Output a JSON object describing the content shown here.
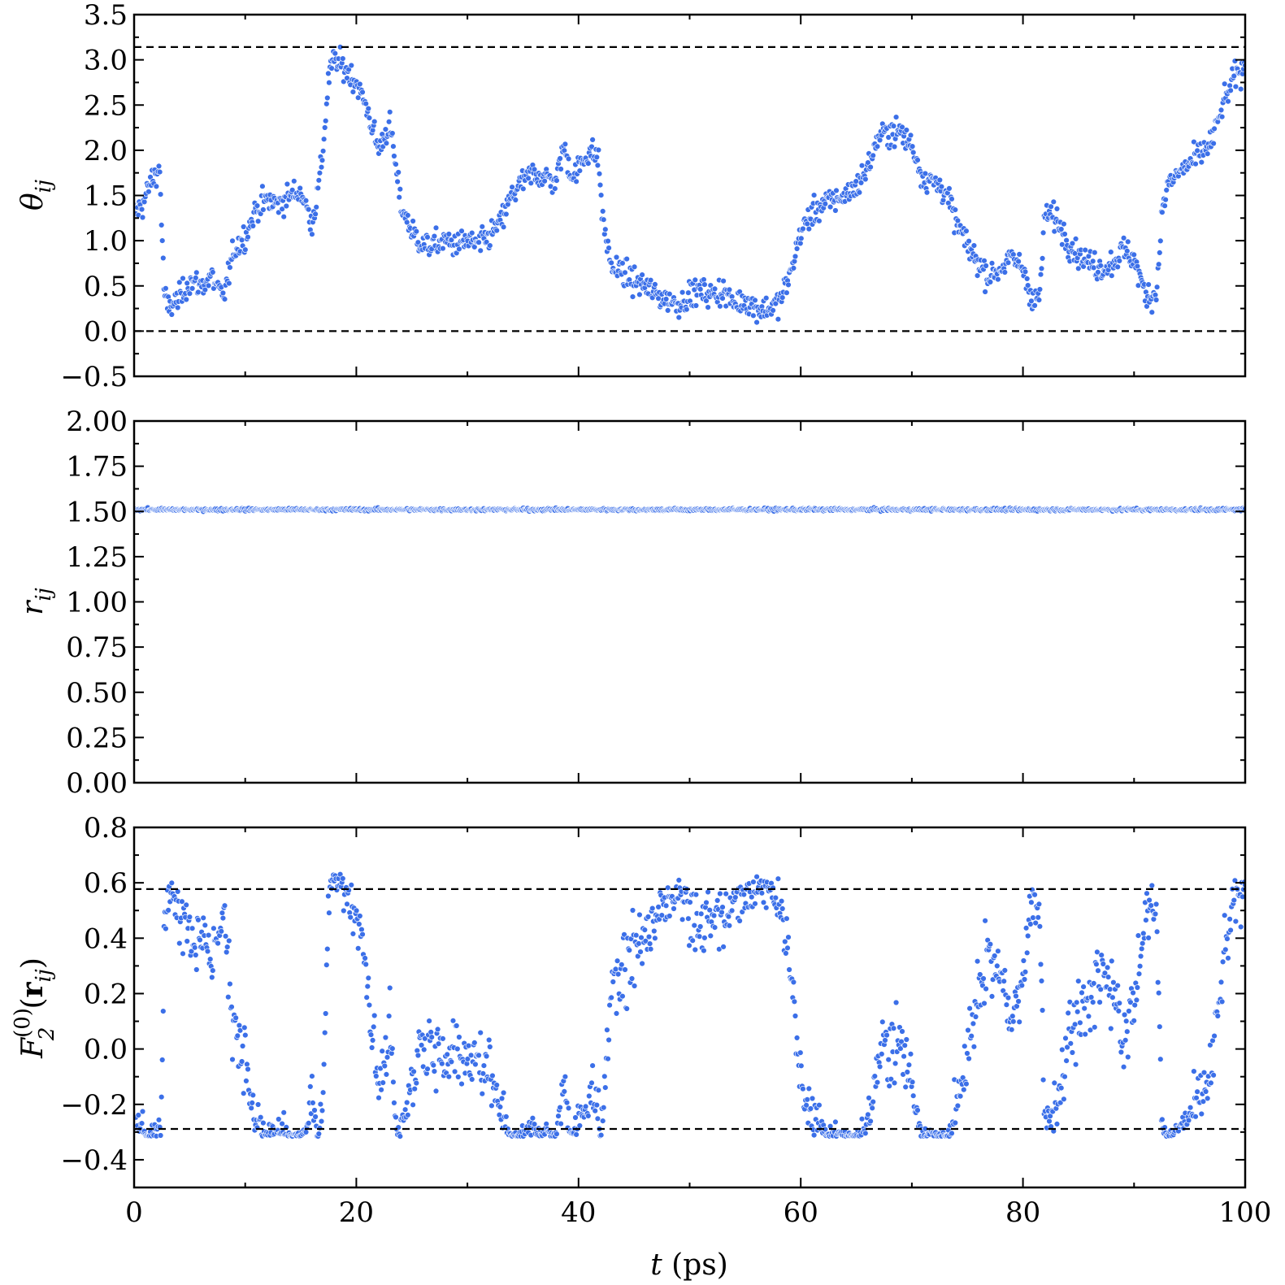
{
  "chart_data": [
    {
      "type": "scatter",
      "ylabel": "θ_ij",
      "ylim": [
        -0.5,
        3.5
      ],
      "xlim": [
        0,
        100
      ],
      "yticks": [
        "−0.5",
        "0.0",
        "0.5",
        "1.0",
        "1.5",
        "2.0",
        "2.5",
        "3.0",
        "3.5"
      ],
      "yticks_values": [
        -0.5,
        0.0,
        0.5,
        1.0,
        1.5,
        2.0,
        2.5,
        3.0,
        3.5
      ],
      "reference_lines": [
        0.0,
        3.1416
      ],
      "marker_color": "#3b6fe8",
      "series": [
        {
          "keypoints": [
            [
              0,
              1.3
            ],
            [
              0.8,
              1.4
            ],
            [
              1.5,
              1.65
            ],
            [
              2.3,
              1.8
            ],
            [
              2.7,
              0.45
            ],
            [
              3,
              0.25
            ],
            [
              4,
              0.35
            ],
            [
              5,
              0.55
            ],
            [
              6,
              0.5
            ],
            [
              7,
              0.6
            ],
            [
              8,
              0.35
            ],
            [
              9,
              0.9
            ],
            [
              10,
              1.05
            ],
            [
              11,
              1.35
            ],
            [
              12,
              1.45
            ],
            [
              13,
              1.4
            ],
            [
              14,
              1.5
            ],
            [
              15,
              1.55
            ],
            [
              16,
              1.2
            ],
            [
              16.5,
              1.5
            ],
            [
              17,
              2.0
            ],
            [
              17.5,
              2.8
            ],
            [
              18,
              3.0
            ],
            [
              19,
              2.9
            ],
            [
              20,
              2.75
            ],
            [
              21,
              2.45
            ],
            [
              22,
              2.0
            ],
            [
              23,
              2.3
            ],
            [
              24,
              1.4
            ],
            [
              25,
              1.1
            ],
            [
              26,
              0.95
            ],
            [
              27,
              0.95
            ],
            [
              28,
              1.0
            ],
            [
              29,
              0.95
            ],
            [
              30,
              1.0
            ],
            [
              31,
              0.95
            ],
            [
              32,
              1.05
            ],
            [
              33,
              1.2
            ],
            [
              34,
              1.5
            ],
            [
              35,
              1.65
            ],
            [
              36,
              1.75
            ],
            [
              37,
              1.7
            ],
            [
              38,
              1.65
            ],
            [
              38.6,
              2.05
            ],
            [
              39.5,
              1.7
            ],
            [
              40,
              1.8
            ],
            [
              41,
              2.0
            ],
            [
              41.8,
              1.9
            ],
            [
              42.2,
              1.2
            ],
            [
              43,
              0.7
            ],
            [
              44,
              0.65
            ],
            [
              45,
              0.55
            ],
            [
              46,
              0.5
            ],
            [
              47,
              0.4
            ],
            [
              48,
              0.35
            ],
            [
              49,
              0.3
            ],
            [
              50,
              0.4
            ],
            [
              51,
              0.45
            ],
            [
              52,
              0.4
            ],
            [
              53,
              0.45
            ],
            [
              54,
              0.3
            ],
            [
              55,
              0.35
            ],
            [
              56,
              0.25
            ],
            [
              57,
              0.25
            ],
            [
              58,
              0.3
            ],
            [
              59,
              0.6
            ],
            [
              60,
              1.1
            ],
            [
              61,
              1.3
            ],
            [
              62,
              1.4
            ],
            [
              63,
              1.45
            ],
            [
              64,
              1.5
            ],
            [
              65,
              1.6
            ],
            [
              66,
              1.8
            ],
            [
              67,
              2.15
            ],
            [
              68,
              2.2
            ],
            [
              69,
              2.2
            ],
            [
              70,
              2.05
            ],
            [
              71,
              1.7
            ],
            [
              72,
              1.65
            ],
            [
              73,
              1.55
            ],
            [
              74,
              1.2
            ],
            [
              75,
              0.95
            ],
            [
              76,
              0.75
            ],
            [
              77,
              0.6
            ],
            [
              78,
              0.7
            ],
            [
              79,
              0.8
            ],
            [
              80,
              0.7
            ],
            [
              81,
              0.3
            ],
            [
              81.5,
              0.4
            ],
            [
              82,
              1.3
            ],
            [
              83,
              1.25
            ],
            [
              84,
              1.0
            ],
            [
              85,
              0.85
            ],
            [
              86,
              0.75
            ],
            [
              87,
              0.7
            ],
            [
              88,
              0.75
            ],
            [
              89,
              0.9
            ],
            [
              90,
              0.8
            ],
            [
              91,
              0.4
            ],
            [
              92,
              0.4
            ],
            [
              92.5,
              1.3
            ],
            [
              93,
              1.6
            ],
            [
              94,
              1.75
            ],
            [
              95,
              1.85
            ],
            [
              96,
              1.95
            ],
            [
              97,
              2.1
            ],
            [
              98,
              2.5
            ],
            [
              99,
              2.8
            ],
            [
              100,
              2.9
            ]
          ],
          "spread": 0.22
        }
      ]
    },
    {
      "type": "scatter",
      "ylabel": "r_ij",
      "ylim": [
        0.0,
        2.0
      ],
      "xlim": [
        0,
        100
      ],
      "yticks": [
        "0.00",
        "0.25",
        "0.50",
        "0.75",
        "1.00",
        "1.25",
        "1.50",
        "1.75",
        "2.00"
      ],
      "yticks_values": [
        0.0,
        0.25,
        0.5,
        0.75,
        1.0,
        1.25,
        1.5,
        1.75,
        2.0
      ],
      "marker_color": "#3b6fe8",
      "series": [
        {
          "constant": 1.51,
          "spread": 0.006
        }
      ]
    },
    {
      "type": "scatter",
      "ylabel": "F_2^(0)(r_ij)",
      "ylim": [
        -0.5,
        0.8
      ],
      "xlim": [
        0,
        100
      ],
      "yticks": [
        "−0.4",
        "−0.2",
        "0.0",
        "0.2",
        "0.4",
        "0.6",
        "0.8"
      ],
      "yticks_values": [
        -0.4,
        -0.2,
        0.0,
        0.2,
        0.4,
        0.6,
        0.8
      ],
      "reference_lines": [
        -0.2887,
        0.5774
      ],
      "marker_color": "#3b6fe8",
      "derived_from": "theta"
    }
  ],
  "xaxis": {
    "label_italic": "t",
    "label_rest": " (ps)",
    "ticks": [
      "0",
      "20",
      "40",
      "60",
      "80",
      "100"
    ],
    "ticks_values": [
      0,
      20,
      40,
      60,
      80,
      100
    ]
  },
  "panel_labels": {
    "theta": {
      "sym": "θ",
      "sub": "ij"
    },
    "r": {
      "sym": "r",
      "sub": "ij"
    },
    "f": {
      "sym": "F",
      "sub": "2",
      "sup": "(0)",
      "arg_open": "(",
      "arg_bold": "r",
      "arg_sub": "ij",
      "arg_close": ")"
    }
  }
}
